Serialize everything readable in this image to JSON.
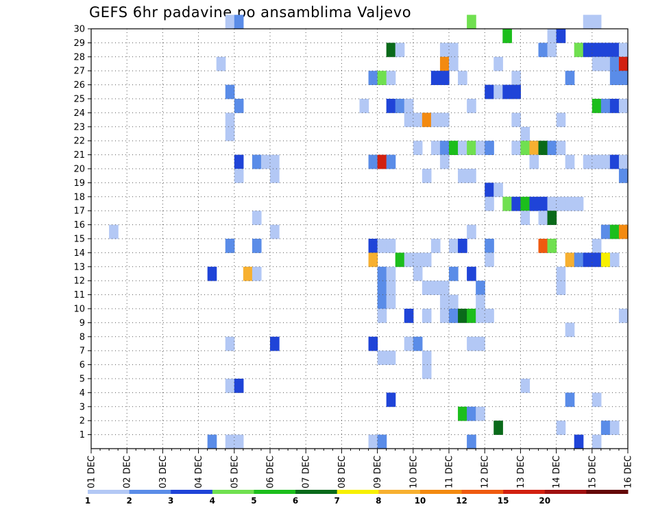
{
  "chart_data": {
    "type": "heatmap",
    "title": "GEFS 6hr padavine po ansamblima Valjevo",
    "x_ticks": [
      "01 DEC",
      "02 DEC",
      "03 DEC",
      "04 DEC",
      "05 DEC",
      "06 DEC",
      "07 DEC",
      "08 DEC",
      "09 DEC",
      "10 DEC",
      "11 DEC",
      "12 DEC",
      "13 DEC",
      "14 DEC",
      "15 DEC",
      "16 DEC"
    ],
    "y_ticks": [
      "1",
      "2",
      "3",
      "4",
      "5",
      "6",
      "7",
      "8",
      "9",
      "10",
      "11",
      "12",
      "13",
      "14",
      "15",
      "16",
      "17",
      "18",
      "19",
      "20",
      "21",
      "22",
      "23",
      "24",
      "25",
      "26",
      "27",
      "28",
      "29",
      "30"
    ],
    "y_range": [
      0,
      30
    ],
    "time_steps_per_day": 4,
    "grid": true,
    "colorbar": {
      "labels": [
        "1",
        "2",
        "3",
        "4",
        "5",
        "6",
        "7",
        "8",
        "10",
        "12",
        "15",
        "20",
        ""
      ],
      "colors": [
        "#b3c8f5",
        "#5a8ce8",
        "#1f44d8",
        "#70e050",
        "#1cbe1c",
        "#0a6a1a",
        "#f7f000",
        "#f7b030",
        "#f38a10",
        "#ef5a10",
        "#d22010",
        "#a01010",
        "#640808"
      ]
    },
    "cells": [
      [
        30,
        15,
        0
      ],
      [
        30,
        16,
        1
      ],
      [
        30,
        42,
        3
      ],
      [
        30,
        55,
        0
      ],
      [
        30,
        56,
        0
      ],
      [
        29,
        46,
        4
      ],
      [
        29,
        51,
        0
      ],
      [
        29,
        52,
        2
      ],
      [
        28,
        33,
        5
      ],
      [
        28,
        34,
        0
      ],
      [
        28,
        39,
        0
      ],
      [
        28,
        40,
        0
      ],
      [
        28,
        50,
        1
      ],
      [
        28,
        51,
        0
      ],
      [
        28,
        54,
        3
      ],
      [
        28,
        55,
        2
      ],
      [
        28,
        56,
        2
      ],
      [
        28,
        57,
        2
      ],
      [
        28,
        58,
        2
      ],
      [
        28,
        59,
        0
      ],
      [
        27,
        14,
        0
      ],
      [
        27,
        39,
        8
      ],
      [
        27,
        40,
        0
      ],
      [
        27,
        45,
        0
      ],
      [
        27,
        56,
        0
      ],
      [
        27,
        57,
        0
      ],
      [
        27,
        58,
        1
      ],
      [
        27,
        59,
        10
      ],
      [
        26,
        31,
        1
      ],
      [
        26,
        32,
        3
      ],
      [
        26,
        33,
        0
      ],
      [
        26,
        38,
        2
      ],
      [
        26,
        39,
        2
      ],
      [
        26,
        41,
        0
      ],
      [
        26,
        47,
        0
      ],
      [
        26,
        53,
        1
      ],
      [
        26,
        58,
        1
      ],
      [
        26,
        59,
        1
      ],
      [
        25,
        15,
        1
      ],
      [
        25,
        44,
        2
      ],
      [
        25,
        45,
        0
      ],
      [
        25,
        46,
        2
      ],
      [
        25,
        47,
        2
      ],
      [
        24,
        16,
        1
      ],
      [
        24,
        30,
        0
      ],
      [
        24,
        33,
        2
      ],
      [
        24,
        34,
        1
      ],
      [
        24,
        35,
        0
      ],
      [
        24,
        42,
        0
      ],
      [
        24,
        56,
        4
      ],
      [
        24,
        57,
        1
      ],
      [
        24,
        58,
        2
      ],
      [
        24,
        59,
        0
      ],
      [
        23,
        15,
        0
      ],
      [
        23,
        35,
        0
      ],
      [
        23,
        36,
        0
      ],
      [
        23,
        37,
        8
      ],
      [
        23,
        38,
        0
      ],
      [
        23,
        39,
        0
      ],
      [
        23,
        47,
        0
      ],
      [
        23,
        52,
        0
      ],
      [
        22,
        15,
        0
      ],
      [
        22,
        48,
        0
      ],
      [
        21,
        48,
        0
      ],
      [
        21,
        49,
        1
      ],
      [
        21,
        36,
        0
      ],
      [
        21,
        38,
        0
      ],
      [
        21,
        39,
        1
      ],
      [
        21,
        40,
        4
      ],
      [
        21,
        41,
        0
      ],
      [
        21,
        42,
        3
      ],
      [
        21,
        43,
        0
      ],
      [
        21,
        44,
        1
      ],
      [
        21,
        47,
        0
      ],
      [
        21,
        48,
        3
      ],
      [
        21,
        49,
        7
      ],
      [
        21,
        50,
        5
      ],
      [
        21,
        51,
        1
      ],
      [
        21,
        52,
        0
      ],
      [
        20,
        16,
        2
      ],
      [
        20,
        18,
        1
      ],
      [
        20,
        19,
        0
      ],
      [
        20,
        20,
        0
      ],
      [
        20,
        31,
        1
      ],
      [
        20,
        32,
        10
      ],
      [
        20,
        33,
        1
      ],
      [
        20,
        39,
        0
      ],
      [
        20,
        49,
        0
      ],
      [
        20,
        53,
        0
      ],
      [
        20,
        55,
        0
      ],
      [
        20,
        56,
        0
      ],
      [
        20,
        57,
        0
      ],
      [
        20,
        58,
        2
      ],
      [
        20,
        59,
        0
      ],
      [
        19,
        16,
        0
      ],
      [
        19,
        20,
        0
      ],
      [
        19,
        37,
        0
      ],
      [
        19,
        41,
        0
      ],
      [
        19,
        42,
        0
      ],
      [
        19,
        59,
        1
      ],
      [
        18,
        44,
        2
      ],
      [
        18,
        45,
        0
      ],
      [
        17,
        44,
        0
      ],
      [
        17,
        46,
        3
      ],
      [
        17,
        47,
        2
      ],
      [
        17,
        48,
        4
      ],
      [
        17,
        49,
        2
      ],
      [
        17,
        50,
        2
      ],
      [
        17,
        51,
        0
      ],
      [
        17,
        52,
        0
      ],
      [
        17,
        53,
        0
      ],
      [
        17,
        54,
        0
      ],
      [
        16,
        18,
        0
      ],
      [
        16,
        48,
        0
      ],
      [
        16,
        50,
        0
      ],
      [
        16,
        51,
        5
      ],
      [
        15,
        2,
        0
      ],
      [
        15,
        20,
        0
      ],
      [
        15,
        42,
        0
      ],
      [
        15,
        57,
        1
      ],
      [
        15,
        58,
        4
      ],
      [
        15,
        59,
        8
      ],
      [
        14,
        15,
        1
      ],
      [
        14,
        18,
        1
      ],
      [
        14,
        31,
        2
      ],
      [
        14,
        32,
        0
      ],
      [
        14,
        33,
        0
      ],
      [
        14,
        38,
        0
      ],
      [
        14,
        40,
        0
      ],
      [
        14,
        41,
        2
      ],
      [
        14,
        44,
        1
      ],
      [
        14,
        50,
        9
      ],
      [
        14,
        51,
        3
      ],
      [
        14,
        56,
        0
      ],
      [
        13,
        31,
        7
      ],
      [
        13,
        34,
        4
      ],
      [
        13,
        35,
        0
      ],
      [
        13,
        36,
        0
      ],
      [
        13,
        37,
        0
      ],
      [
        13,
        44,
        0
      ],
      [
        13,
        53,
        7
      ],
      [
        13,
        54,
        1
      ],
      [
        13,
        55,
        2
      ],
      [
        13,
        56,
        2
      ],
      [
        13,
        57,
        6
      ],
      [
        13,
        58,
        0
      ],
      [
        12,
        13,
        2
      ],
      [
        12,
        17,
        7
      ],
      [
        12,
        18,
        0
      ],
      [
        12,
        32,
        1
      ],
      [
        12,
        33,
        0
      ],
      [
        12,
        36,
        0
      ],
      [
        12,
        40,
        1
      ],
      [
        12,
        42,
        2
      ],
      [
        12,
        52,
        0
      ],
      [
        11,
        32,
        1
      ],
      [
        11,
        33,
        0
      ],
      [
        11,
        37,
        0
      ],
      [
        11,
        38,
        0
      ],
      [
        11,
        39,
        0
      ],
      [
        11,
        43,
        1
      ],
      [
        11,
        52,
        0
      ],
      [
        10,
        32,
        1
      ],
      [
        10,
        33,
        0
      ],
      [
        10,
        39,
        0
      ],
      [
        10,
        40,
        0
      ],
      [
        10,
        43,
        0
      ],
      [
        9,
        32,
        0
      ],
      [
        9,
        35,
        2
      ],
      [
        9,
        37,
        0
      ],
      [
        9,
        39,
        0
      ],
      [
        9,
        40,
        1
      ],
      [
        9,
        41,
        5
      ],
      [
        9,
        42,
        4
      ],
      [
        9,
        43,
        0
      ],
      [
        9,
        44,
        0
      ],
      [
        9,
        59,
        0
      ],
      [
        8,
        53,
        0
      ],
      [
        7,
        15,
        0
      ],
      [
        7,
        20,
        2
      ],
      [
        7,
        31,
        2
      ],
      [
        7,
        35,
        0
      ],
      [
        7,
        36,
        1
      ],
      [
        7,
        42,
        0
      ],
      [
        7,
        43,
        0
      ],
      [
        6,
        32,
        0
      ],
      [
        6,
        33,
        0
      ],
      [
        6,
        37,
        0
      ],
      [
        5,
        37,
        0
      ],
      [
        4,
        15,
        0
      ],
      [
        4,
        16,
        2
      ],
      [
        4,
        48,
        0
      ],
      [
        3,
        33,
        2
      ],
      [
        3,
        53,
        1
      ],
      [
        3,
        56,
        0
      ],
      [
        2,
        41,
        4
      ],
      [
        2,
        42,
        1
      ],
      [
        2,
        43,
        0
      ],
      [
        1,
        45,
        5
      ],
      [
        1,
        52,
        0
      ],
      [
        1,
        57,
        1
      ],
      [
        1,
        58,
        0
      ],
      [
        0,
        13,
        1
      ],
      [
        0,
        15,
        0
      ],
      [
        0,
        16,
        0
      ],
      [
        0,
        31,
        0
      ],
      [
        0,
        32,
        1
      ],
      [
        0,
        42,
        1
      ],
      [
        0,
        54,
        2
      ],
      [
        0,
        56,
        0
      ]
    ]
  }
}
